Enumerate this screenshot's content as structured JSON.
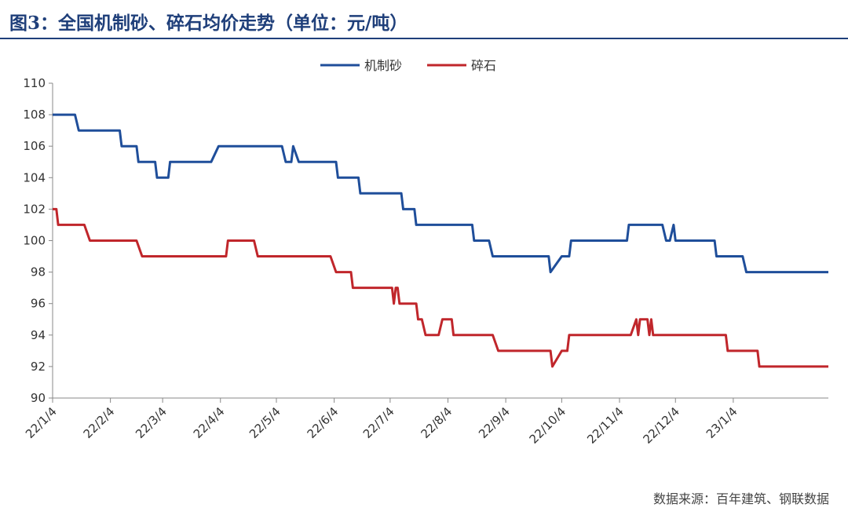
{
  "title": "图3：全国机制砂、碎石均价走势（单位：元/吨）",
  "source": "数据来源：百年建筑、钢联数据",
  "chart_data": {
    "type": "line",
    "ylim": [
      90,
      110
    ],
    "yticks": [
      90,
      92,
      94,
      96,
      98,
      100,
      102,
      104,
      106,
      108,
      110
    ],
    "x_range": [
      "2022-01-04",
      "2023-02-24"
    ],
    "x_ticks": [
      "22/1/4",
      "22/2/4",
      "22/3/4",
      "22/4/4",
      "22/5/4",
      "22/6/4",
      "22/7/4",
      "22/8/4",
      "22/9/4",
      "22/10/4",
      "22/11/4",
      "22/12/4",
      "23/1/4"
    ],
    "x_tick_dates": [
      "2022-01-04",
      "2022-02-04",
      "2022-03-04",
      "2022-04-04",
      "2022-05-04",
      "2022-06-04",
      "2022-07-04",
      "2022-08-04",
      "2022-09-04",
      "2022-10-04",
      "2022-11-04",
      "2022-12-04",
      "2023-01-04"
    ],
    "legend_position": "top-center",
    "grid": false,
    "series": [
      {
        "name": "机制砂",
        "color": "#1f4e9a",
        "points": [
          [
            "2022-01-04",
            108
          ],
          [
            "2022-01-16",
            108
          ],
          [
            "2022-01-18",
            107
          ],
          [
            "2022-02-09",
            107
          ],
          [
            "2022-02-10",
            106
          ],
          [
            "2022-02-18",
            106
          ],
          [
            "2022-02-19",
            105
          ],
          [
            "2022-02-28",
            105
          ],
          [
            "2022-03-01",
            104
          ],
          [
            "2022-03-07",
            104
          ],
          [
            "2022-03-08",
            105
          ],
          [
            "2022-03-30",
            105
          ],
          [
            "2022-04-03",
            106
          ],
          [
            "2022-05-07",
            106
          ],
          [
            "2022-05-09",
            105
          ],
          [
            "2022-05-12",
            105
          ],
          [
            "2022-05-13",
            106
          ],
          [
            "2022-05-16",
            105
          ],
          [
            "2022-06-05",
            105
          ],
          [
            "2022-06-06",
            104
          ],
          [
            "2022-06-17",
            104
          ],
          [
            "2022-06-18",
            103
          ],
          [
            "2022-07-10",
            103
          ],
          [
            "2022-07-11",
            102
          ],
          [
            "2022-07-17",
            102
          ],
          [
            "2022-07-18",
            101
          ],
          [
            "2022-08-17",
            101
          ],
          [
            "2022-08-18",
            100
          ],
          [
            "2022-08-26",
            100
          ],
          [
            "2022-08-28",
            99
          ],
          [
            "2022-09-27",
            99
          ],
          [
            "2022-09-28",
            98
          ],
          [
            "2022-10-04",
            99
          ],
          [
            "2022-10-08",
            99
          ],
          [
            "2022-10-09",
            100
          ],
          [
            "2022-11-08",
            100
          ],
          [
            "2022-11-09",
            101
          ],
          [
            "2022-11-27",
            101
          ],
          [
            "2022-11-29",
            100
          ],
          [
            "2022-12-01",
            100
          ],
          [
            "2022-12-03",
            101
          ],
          [
            "2022-12-04",
            100
          ],
          [
            "2022-12-25",
            100
          ],
          [
            "2022-12-26",
            99
          ],
          [
            "2023-01-09",
            99
          ],
          [
            "2023-01-11",
            98
          ],
          [
            "2023-02-24",
            98
          ]
        ]
      },
      {
        "name": "碎石",
        "color": "#c0262b",
        "points": [
          [
            "2022-01-04",
            102
          ],
          [
            "2022-01-06",
            102
          ],
          [
            "2022-01-07",
            101
          ],
          [
            "2022-01-21",
            101
          ],
          [
            "2022-01-24",
            100
          ],
          [
            "2022-02-18",
            100
          ],
          [
            "2022-02-21",
            99
          ],
          [
            "2022-04-07",
            99
          ],
          [
            "2022-04-08",
            100
          ],
          [
            "2022-04-22",
            100
          ],
          [
            "2022-04-24",
            99
          ],
          [
            "2022-06-02",
            99
          ],
          [
            "2022-06-05",
            98
          ],
          [
            "2022-06-13",
            98
          ],
          [
            "2022-06-14",
            97
          ],
          [
            "2022-07-05",
            97
          ],
          [
            "2022-07-06",
            96
          ],
          [
            "2022-07-07",
            97
          ],
          [
            "2022-07-08",
            97
          ],
          [
            "2022-07-09",
            96
          ],
          [
            "2022-07-18",
            96
          ],
          [
            "2022-07-19",
            95
          ],
          [
            "2022-07-21",
            95
          ],
          [
            "2022-07-23",
            94
          ],
          [
            "2022-07-30",
            94
          ],
          [
            "2022-08-01",
            95
          ],
          [
            "2022-08-06",
            95
          ],
          [
            "2022-08-07",
            94
          ],
          [
            "2022-08-28",
            94
          ],
          [
            "2022-08-31",
            93
          ],
          [
            "2022-09-28",
            93
          ],
          [
            "2022-09-29",
            92
          ],
          [
            "2022-10-04",
            93
          ],
          [
            "2022-10-07",
            93
          ],
          [
            "2022-10-08",
            94
          ],
          [
            "2022-11-10",
            94
          ],
          [
            "2022-11-13",
            95
          ],
          [
            "2022-11-14",
            94
          ],
          [
            "2022-11-15",
            95
          ],
          [
            "2022-11-19",
            95
          ],
          [
            "2022-11-20",
            94
          ],
          [
            "2022-11-21",
            95
          ],
          [
            "2022-11-22",
            94
          ],
          [
            "2022-12-31",
            94
          ],
          [
            "2023-01-01",
            93
          ],
          [
            "2023-01-17",
            93
          ],
          [
            "2023-01-18",
            92
          ],
          [
            "2023-02-24",
            92
          ]
        ]
      }
    ]
  }
}
